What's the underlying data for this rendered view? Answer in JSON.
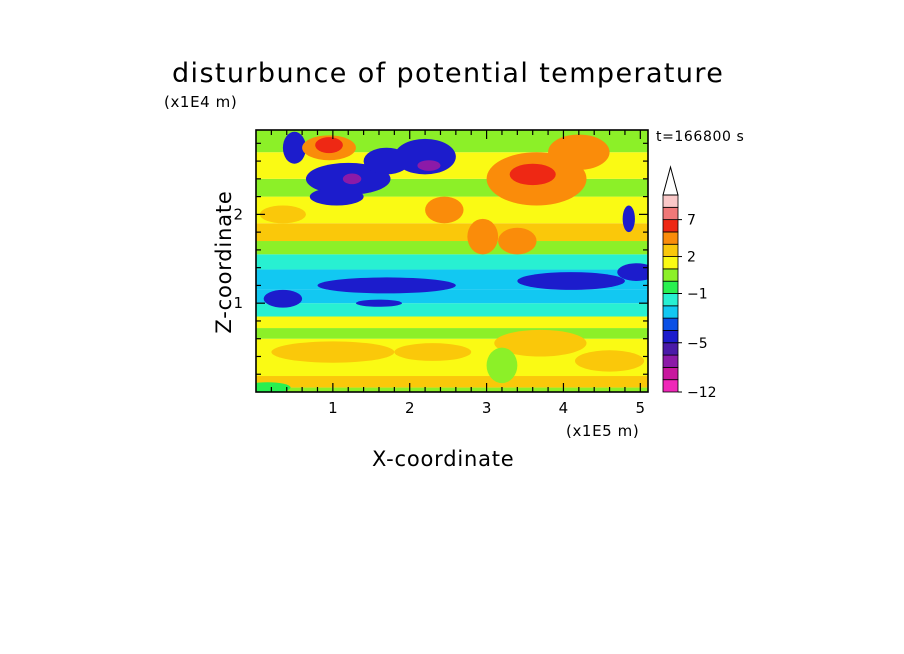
{
  "chart_data": {
    "type": "heatmap",
    "title": "disturbunce of potential temperature",
    "xlabel": "X-coordinate",
    "ylabel": "Z-coordinate",
    "x_unit": "(x1E5 m)",
    "y_unit": "(x1E4 m)",
    "time_label": "t=166800 s",
    "xlim": [
      0,
      5.1
    ],
    "ylim": [
      0,
      2.95
    ],
    "x_ticks": [
      1,
      2,
      3,
      4,
      5
    ],
    "y_ticks": [
      1,
      2
    ],
    "grid": false,
    "colorbar": {
      "levels": [
        -12,
        -10,
        -8,
        -6,
        -5,
        -4,
        -3,
        -2,
        -1,
        0,
        1,
        2,
        3,
        5,
        7,
        9,
        11
      ],
      "tick_labels": [
        {
          "value": 7,
          "label": "7"
        },
        {
          "value": 2,
          "label": "2"
        },
        {
          "value": -1,
          "label": "−1"
        },
        {
          "value": -5,
          "label": "−5"
        },
        {
          "value": -12,
          "label": "−12"
        }
      ],
      "colors": [
        "#ef27b8",
        "#c8179e",
        "#8c1aa8",
        "#4a1aa8",
        "#1c1ccc",
        "#0a50e6",
        "#12c8f2",
        "#28f0d2",
        "#28f050",
        "#8cf028",
        "#fafa14",
        "#fac80a",
        "#fa8c0a",
        "#ee2814",
        "#f07878",
        "#fac8c8"
      ],
      "extend": "max"
    },
    "bands": [
      {
        "z": [
          0.0,
          0.05
        ],
        "value": 0.5
      },
      {
        "z": [
          0.05,
          0.18
        ],
        "value": 2.5
      },
      {
        "z": [
          0.18,
          0.6
        ],
        "value": 1.5
      },
      {
        "z": [
          0.6,
          0.72
        ],
        "value": 0.5
      },
      {
        "z": [
          0.72,
          0.85
        ],
        "value": 1.5
      },
      {
        "z": [
          0.85,
          1.0
        ],
        "value": -1.5
      },
      {
        "z": [
          1.0,
          1.15
        ],
        "value": -2.5
      },
      {
        "z": [
          1.15,
          1.38
        ],
        "value": -2.5
      },
      {
        "z": [
          1.38,
          1.55
        ],
        "value": -1.5
      },
      {
        "z": [
          1.55,
          1.7
        ],
        "value": 0.5
      },
      {
        "z": [
          1.7,
          1.9
        ],
        "value": 2.5
      },
      {
        "z": [
          1.9,
          2.2
        ],
        "value": 1.5
      },
      {
        "z": [
          2.2,
          2.4
        ],
        "value": 0.5
      },
      {
        "z": [
          2.4,
          2.7
        ],
        "value": 1.5
      },
      {
        "z": [
          2.7,
          2.95
        ],
        "value": 0.5
      }
    ],
    "features": [
      {
        "x": 0.35,
        "z": 1.05,
        "rx": 0.25,
        "rz": 0.1,
        "value": -4.5
      },
      {
        "x": 1.7,
        "z": 1.2,
        "rx": 0.9,
        "rz": 0.09,
        "value": -4.5
      },
      {
        "x": 4.1,
        "z": 1.25,
        "rx": 0.7,
        "rz": 0.1,
        "value": -4.5
      },
      {
        "x": 4.95,
        "z": 1.35,
        "rx": 0.25,
        "rz": 0.1,
        "value": -4.5
      },
      {
        "x": 1.6,
        "z": 1.0,
        "rx": 0.3,
        "rz": 0.04,
        "value": -4.5
      },
      {
        "x": 0.5,
        "z": 2.75,
        "rx": 0.15,
        "rz": 0.18,
        "value": -4.5
      },
      {
        "x": 1.2,
        "z": 2.4,
        "rx": 0.55,
        "rz": 0.18,
        "value": -4.5
      },
      {
        "x": 1.05,
        "z": 2.2,
        "rx": 0.35,
        "rz": 0.1,
        "value": -4.5
      },
      {
        "x": 1.7,
        "z": 2.6,
        "rx": 0.3,
        "rz": 0.15,
        "value": -4.5
      },
      {
        "x": 2.2,
        "z": 2.65,
        "rx": 0.4,
        "rz": 0.2,
        "value": -4.5
      },
      {
        "x": 2.25,
        "z": 2.55,
        "rx": 0.15,
        "rz": 0.06,
        "value": -6.5
      },
      {
        "x": 1.25,
        "z": 2.4,
        "rx": 0.12,
        "rz": 0.06,
        "value": -6.5
      },
      {
        "x": 4.85,
        "z": 1.95,
        "rx": 0.08,
        "rz": 0.15,
        "value": -4.5
      },
      {
        "x": 0.95,
        "z": 2.75,
        "rx": 0.35,
        "rz": 0.14,
        "value": 4.0
      },
      {
        "x": 0.95,
        "z": 2.78,
        "rx": 0.18,
        "rz": 0.09,
        "value": 6.0
      },
      {
        "x": 3.65,
        "z": 2.4,
        "rx": 0.65,
        "rz": 0.3,
        "value": 4.0
      },
      {
        "x": 3.6,
        "z": 2.45,
        "rx": 0.3,
        "rz": 0.12,
        "value": 6.0
      },
      {
        "x": 4.2,
        "z": 2.7,
        "rx": 0.4,
        "rz": 0.2,
        "value": 4.0
      },
      {
        "x": 2.45,
        "z": 2.05,
        "rx": 0.25,
        "rz": 0.15,
        "value": 4.0
      },
      {
        "x": 2.95,
        "z": 1.75,
        "rx": 0.2,
        "rz": 0.2,
        "value": 4.0
      },
      {
        "x": 3.4,
        "z": 1.7,
        "rx": 0.25,
        "rz": 0.15,
        "value": 4.0
      },
      {
        "x": 1.0,
        "z": 0.45,
        "rx": 0.8,
        "rz": 0.12,
        "value": 2.5
      },
      {
        "x": 2.3,
        "z": 0.45,
        "rx": 0.5,
        "rz": 0.1,
        "value": 2.5
      },
      {
        "x": 3.7,
        "z": 0.55,
        "rx": 0.6,
        "rz": 0.15,
        "value": 2.5
      },
      {
        "x": 4.6,
        "z": 0.35,
        "rx": 0.45,
        "rz": 0.12,
        "value": 2.5
      },
      {
        "x": 0.35,
        "z": 2.0,
        "rx": 0.3,
        "rz": 0.1,
        "value": 2.5
      },
      {
        "x": 3.2,
        "z": 0.3,
        "rx": 0.2,
        "rz": 0.2,
        "value": 0.5
      },
      {
        "x": 0.15,
        "z": 0.05,
        "rx": 0.3,
        "rz": 0.06,
        "value": -0.5
      }
    ]
  }
}
